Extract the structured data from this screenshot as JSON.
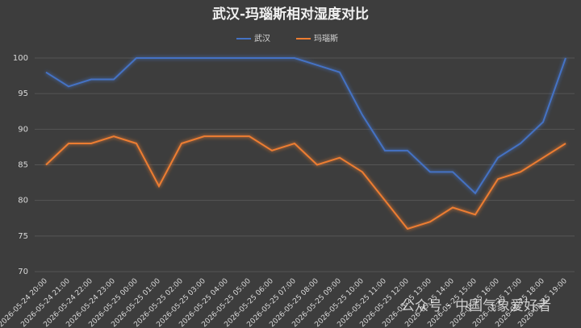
{
  "chart_data": {
    "type": "line",
    "title": "武汉-玛瑙斯相对湿度对比",
    "categories": [
      "2026-05-24 20:00",
      "2026-05-24 21:00",
      "2026-05-24 22:00",
      "2026-05-24 23:00",
      "2026-05-25 00:00",
      "2026-05-25 01:00",
      "2026-05-25 02:00",
      "2026-05-25 03:00",
      "2026-05-25 04:00",
      "2026-05-25 05:00",
      "2026-05-25 06:00",
      "2026-05-25 07:00",
      "2026-05-25 08:00",
      "2026-05-25 09:00",
      "2026-05-25 10:00",
      "2026-05-25 11:00",
      "2026-05-25 12:00",
      "2026-05-25 13:00",
      "2026-05-25 14:00",
      "2026-05-25 15:00",
      "2026-05-25 16:00",
      "2026-05-25 17:00",
      "2026-05-25 18:00",
      "2026-05-25 19:00"
    ],
    "series": [
      {
        "name": "武汉",
        "color": "#4472c4",
        "values": [
          98,
          96,
          97,
          97,
          100,
          100,
          100,
          100,
          100,
          100,
          100,
          100,
          99,
          98,
          92,
          87,
          87,
          84,
          84,
          81,
          86,
          88,
          91,
          100
        ]
      },
      {
        "name": "玛瑙斯",
        "color": "#ed7d31",
        "values": [
          85,
          88,
          88,
          89,
          88,
          82,
          88,
          89,
          89,
          89,
          87,
          88,
          85,
          86,
          84,
          80,
          76,
          77,
          79,
          78,
          83,
          84,
          86,
          88
        ]
      }
    ],
    "ylim": [
      70,
      100
    ],
    "yticks": [
      70,
      75,
      80,
      85,
      90,
      95,
      100
    ],
    "grid": true,
    "legend": "top",
    "annotations": [
      "公众号 · 中国气象爱好者"
    ]
  }
}
